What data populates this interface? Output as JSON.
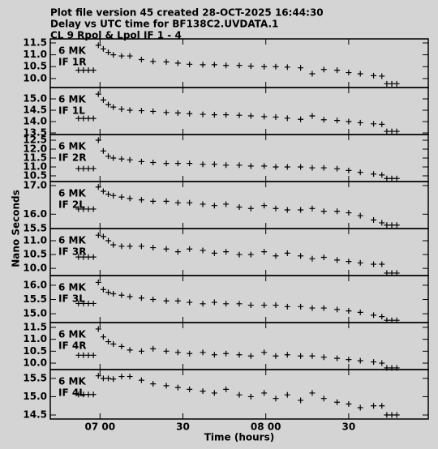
{
  "title": [
    "Plot file version 45  created 28-OCT-2025 16:44:30",
    "Delay vs UTC time for BF138C2.UVDATA.1",
    "CL 9  Rpol & Lpol  IF 1 - 4"
  ],
  "ylabel": "Nano Seconds",
  "xlabel": "Time (hours)",
  "chart_data": [
    {
      "type": "scatter",
      "source": "6 MK",
      "title": "IF 1R",
      "color": "#000000",
      "x": [
        6.87,
        6.9,
        6.93,
        6.96,
        6.99,
        7.02,
        7.05,
        7.08,
        7.13,
        7.18,
        7.25,
        7.32,
        7.4,
        7.47,
        7.54,
        7.62,
        7.69,
        7.76,
        7.84,
        7.91,
        7.99,
        8.06,
        8.13,
        8.21,
        8.28,
        8.35,
        8.43,
        8.5,
        8.57,
        8.65,
        8.7,
        8.73,
        8.76,
        8.79
      ],
      "values": [
        10.35,
        10.35,
        10.35,
        10.35,
        11.4,
        11.25,
        11.1,
        11.0,
        10.95,
        10.95,
        10.8,
        10.72,
        10.7,
        10.65,
        10.6,
        10.58,
        10.58,
        10.55,
        10.55,
        10.52,
        10.5,
        10.5,
        10.48,
        10.45,
        10.2,
        10.38,
        10.35,
        10.25,
        10.2,
        10.12,
        10.1,
        9.78,
        9.78,
        9.78
      ],
      "xlim": [
        6.7,
        8.98
      ],
      "xticks": [
        {
          "value": 7,
          "label": "07 00"
        },
        {
          "value": 7.5,
          "label": "30"
        },
        {
          "value": 8,
          "label": "08 00"
        },
        {
          "value": 8.5,
          "label": "30"
        }
      ],
      "ylim": [
        9.62,
        11.67
      ],
      "yticks": [
        {
          "value": 10,
          "label": "10.0"
        },
        10.5,
        {
          "value": 11,
          "label": "11.0"
        },
        11.5
      ]
    },
    {
      "type": "scatter",
      "source": "6 MK",
      "title": "IF 1L",
      "color": "#000000",
      "x": [
        6.87,
        6.9,
        6.93,
        6.96,
        6.99,
        7.02,
        7.05,
        7.08,
        7.13,
        7.18,
        7.25,
        7.32,
        7.4,
        7.47,
        7.54,
        7.62,
        7.69,
        7.76,
        7.84,
        7.91,
        7.99,
        8.06,
        8.13,
        8.21,
        8.28,
        8.35,
        8.43,
        8.5,
        8.57,
        8.65,
        8.7,
        8.73,
        8.76,
        8.79
      ],
      "values": [
        14.14,
        14.14,
        14.14,
        14.14,
        15.21,
        14.95,
        14.75,
        14.64,
        14.55,
        14.5,
        14.48,
        14.45,
        14.4,
        14.38,
        14.35,
        14.32,
        14.3,
        14.3,
        14.28,
        14.25,
        14.22,
        14.2,
        14.15,
        14.1,
        14.25,
        14.08,
        14.05,
        14.0,
        13.95,
        13.9,
        13.88,
        13.57,
        13.57,
        13.57
      ],
      "xlim": [
        6.7,
        8.98
      ],
      "xticks": [
        {
          "value": 7,
          "label": "07 00"
        },
        {
          "value": 7.5,
          "label": "30"
        },
        {
          "value": 8,
          "label": "08 00"
        },
        {
          "value": 8.5,
          "label": "30"
        }
      ],
      "ylim": [
        13.43,
        15.5
      ],
      "yticks": [
        13.5,
        {
          "value": 14,
          "label": "14.0"
        },
        14.5,
        {
          "value": 15,
          "label": "15.0"
        }
      ]
    },
    {
      "type": "scatter",
      "source": "6 MK",
      "title": "IF 2R",
      "color": "#000000",
      "x": [
        6.87,
        6.9,
        6.93,
        6.96,
        6.99,
        7.02,
        7.05,
        7.08,
        7.13,
        7.18,
        7.25,
        7.32,
        7.4,
        7.47,
        7.54,
        7.62,
        7.69,
        7.76,
        7.84,
        7.91,
        7.99,
        8.06,
        8.13,
        8.21,
        8.28,
        8.35,
        8.43,
        8.5,
        8.57,
        8.65,
        8.7,
        8.73,
        8.76,
        8.79
      ],
      "values": [
        10.91,
        10.91,
        10.91,
        10.91,
        12.5,
        11.9,
        11.6,
        11.5,
        11.45,
        11.4,
        11.3,
        11.25,
        11.2,
        11.2,
        11.2,
        11.15,
        11.15,
        11.1,
        11.1,
        11.05,
        11.05,
        11.0,
        11.0,
        11.0,
        10.95,
        10.95,
        10.9,
        10.8,
        10.7,
        10.6,
        10.55,
        10.35,
        10.35,
        10.35
      ],
      "xlim": [
        6.7,
        8.98
      ],
      "xticks": [
        {
          "value": 7,
          "label": "07 00"
        },
        {
          "value": 7.5,
          "label": "30"
        },
        {
          "value": 8,
          "label": "08 00"
        },
        {
          "value": 8.5,
          "label": "30"
        }
      ],
      "ylim": [
        10.18,
        12.82
      ],
      "yticks": [
        10.5,
        {
          "value": 11,
          "label": "11.0"
        },
        11.5,
        {
          "value": 12,
          "label": "12.0"
        },
        12.5
      ]
    },
    {
      "type": "scatter",
      "source": "6 MK",
      "title": "IF 2L",
      "color": "#000000",
      "x": [
        6.87,
        6.9,
        6.93,
        6.96,
        6.99,
        7.02,
        7.05,
        7.08,
        7.13,
        7.18,
        7.25,
        7.32,
        7.4,
        7.47,
        7.54,
        7.62,
        7.69,
        7.76,
        7.84,
        7.91,
        7.99,
        8.06,
        8.13,
        8.21,
        8.28,
        8.35,
        8.43,
        8.5,
        8.57,
        8.65,
        8.7,
        8.73,
        8.76,
        8.79
      ],
      "values": [
        16.18,
        16.18,
        16.18,
        16.18,
        16.95,
        16.8,
        16.7,
        16.65,
        16.6,
        16.55,
        16.5,
        16.45,
        16.45,
        16.4,
        16.4,
        16.35,
        16.3,
        16.35,
        16.25,
        16.2,
        16.3,
        16.2,
        16.15,
        16.15,
        16.2,
        16.1,
        16.1,
        16.05,
        15.95,
        15.8,
        15.7,
        15.62,
        15.62,
        15.62
      ],
      "xlim": [
        6.7,
        8.98
      ],
      "xticks": [
        {
          "value": 7,
          "label": "07 00"
        },
        {
          "value": 7.5,
          "label": "30"
        },
        {
          "value": 8,
          "label": "08 00"
        },
        {
          "value": 8.5,
          "label": "30"
        }
      ],
      "ylim": [
        15.5,
        17.14
      ],
      "yticks": [
        15.5,
        {
          "value": 16,
          "label": "16.0"
        },
        {
          "value": 17,
          "label": "17.0"
        }
      ]
    },
    {
      "type": "scatter",
      "source": "6 MK",
      "title": "IF 3R",
      "color": "#000000",
      "x": [
        6.87,
        6.9,
        6.93,
        6.96,
        6.99,
        7.02,
        7.05,
        7.08,
        7.13,
        7.18,
        7.25,
        7.32,
        7.4,
        7.47,
        7.54,
        7.62,
        7.69,
        7.76,
        7.84,
        7.91,
        7.99,
        8.06,
        8.13,
        8.21,
        8.28,
        8.35,
        8.43,
        8.5,
        8.57,
        8.65,
        8.7,
        8.73,
        8.76,
        8.79
      ],
      "values": [
        10.41,
        10.41,
        10.41,
        10.41,
        11.2,
        11.15,
        11.0,
        10.85,
        10.8,
        10.8,
        10.8,
        10.75,
        10.7,
        10.6,
        10.7,
        10.65,
        10.55,
        10.6,
        10.5,
        10.5,
        10.6,
        10.45,
        10.55,
        10.45,
        10.35,
        10.4,
        10.3,
        10.25,
        10.2,
        10.15,
        10.15,
        9.83,
        9.83,
        9.83
      ],
      "xlim": [
        6.7,
        8.98
      ],
      "xticks": [
        {
          "value": 7,
          "label": "07 00"
        },
        {
          "value": 7.5,
          "label": "30"
        },
        {
          "value": 8,
          "label": "08 00"
        },
        {
          "value": 8.5,
          "label": "30"
        }
      ],
      "ylim": [
        9.74,
        11.44
      ],
      "yticks": [
        {
          "value": 10,
          "label": "10.0"
        },
        10.5,
        {
          "value": 11,
          "label": "11.0"
        }
      ]
    },
    {
      "type": "scatter",
      "source": "6 MK",
      "title": "IF 3L",
      "color": "#000000",
      "x": [
        6.87,
        6.9,
        6.93,
        6.96,
        6.99,
        7.02,
        7.05,
        7.08,
        7.13,
        7.18,
        7.25,
        7.32,
        7.4,
        7.47,
        7.54,
        7.62,
        7.69,
        7.76,
        7.84,
        7.91,
        7.99,
        8.06,
        8.13,
        8.21,
        8.28,
        8.35,
        8.43,
        8.5,
        8.57,
        8.65,
        8.7,
        8.73,
        8.76,
        8.79
      ],
      "values": [
        15.36,
        15.36,
        15.36,
        15.36,
        16.1,
        15.85,
        15.75,
        15.7,
        15.65,
        15.6,
        15.55,
        15.5,
        15.45,
        15.45,
        15.4,
        15.35,
        15.4,
        15.35,
        15.35,
        15.3,
        15.3,
        15.3,
        15.25,
        15.25,
        15.2,
        15.2,
        15.15,
        15.1,
        15.05,
        14.95,
        14.9,
        14.77,
        14.77,
        14.77
      ],
      "xlim": [
        6.7,
        8.98
      ],
      "xticks": [
        {
          "value": 7,
          "label": "07 00"
        },
        {
          "value": 7.5,
          "label": "30"
        },
        {
          "value": 8,
          "label": "08 00"
        },
        {
          "value": 8.5,
          "label": "30"
        }
      ],
      "ylim": [
        14.69,
        16.34
      ],
      "yticks": [
        {
          "value": 15,
          "label": "15.0"
        },
        15.5,
        {
          "value": 16,
          "label": "16.0"
        }
      ]
    },
    {
      "type": "scatter",
      "source": "6 MK",
      "title": "IF 4R",
      "color": "#000000",
      "x": [
        6.87,
        6.9,
        6.93,
        6.96,
        6.99,
        7.02,
        7.05,
        7.08,
        7.13,
        7.18,
        7.25,
        7.32,
        7.4,
        7.47,
        7.54,
        7.62,
        7.69,
        7.76,
        7.84,
        7.91,
        7.99,
        8.06,
        8.13,
        8.21,
        8.28,
        8.35,
        8.43,
        8.5,
        8.57,
        8.65,
        8.7,
        8.73,
        8.76,
        8.79
      ],
      "values": [
        10.33,
        10.33,
        10.33,
        10.33,
        11.43,
        11.1,
        10.9,
        10.8,
        10.7,
        10.55,
        10.5,
        10.6,
        10.5,
        10.45,
        10.4,
        10.45,
        10.35,
        10.4,
        10.35,
        10.3,
        10.45,
        10.3,
        10.35,
        10.3,
        10.3,
        10.25,
        10.2,
        10.15,
        10.1,
        10.05,
        10.0,
        9.8,
        9.8,
        9.8
      ],
      "xlim": [
        6.7,
        8.98
      ],
      "xticks": [
        {
          "value": 7,
          "label": "07 00"
        },
        {
          "value": 7.5,
          "label": "30"
        },
        {
          "value": 8,
          "label": "08 00"
        },
        {
          "value": 8.5,
          "label": "30"
        }
      ],
      "ylim": [
        9.73,
        11.7
      ],
      "yticks": [
        {
          "value": 10,
          "label": "10.0"
        },
        10.5,
        {
          "value": 11,
          "label": "11.0"
        },
        11.5
      ]
    },
    {
      "type": "scatter",
      "source": "6 MK",
      "title": "IF 4L",
      "color": "#000000",
      "x": [
        6.87,
        6.9,
        6.93,
        6.96,
        6.99,
        7.02,
        7.05,
        7.08,
        7.13,
        7.18,
        7.25,
        7.32,
        7.4,
        7.47,
        7.54,
        7.62,
        7.69,
        7.76,
        7.84,
        7.91,
        7.99,
        8.06,
        8.13,
        8.21,
        8.28,
        8.35,
        8.43,
        8.5,
        8.57,
        8.65,
        8.7,
        8.73,
        8.76,
        8.79
      ],
      "values": [
        15.06,
        15.06,
        15.06,
        15.06,
        15.57,
        15.5,
        15.5,
        15.48,
        15.55,
        15.55,
        15.45,
        15.35,
        15.3,
        15.25,
        15.2,
        15.15,
        15.1,
        15.2,
        15.05,
        15.0,
        15.1,
        14.95,
        15.05,
        14.9,
        15.1,
        14.95,
        14.85,
        14.8,
        14.7,
        14.75,
        14.75,
        14.5,
        14.5,
        14.5
      ],
      "xlim": [
        6.7,
        8.98
      ],
      "xticks": [
        {
          "value": 7,
          "label": "07 00"
        },
        {
          "value": 7.5,
          "label": "30"
        },
        {
          "value": 8,
          "label": "08 00"
        },
        {
          "value": 8.5,
          "label": "30"
        }
      ],
      "ylim": [
        14.39,
        15.74
      ],
      "yticks": [
        14.5,
        {
          "value": 15,
          "label": "15.0"
        },
        15.5
      ]
    }
  ]
}
